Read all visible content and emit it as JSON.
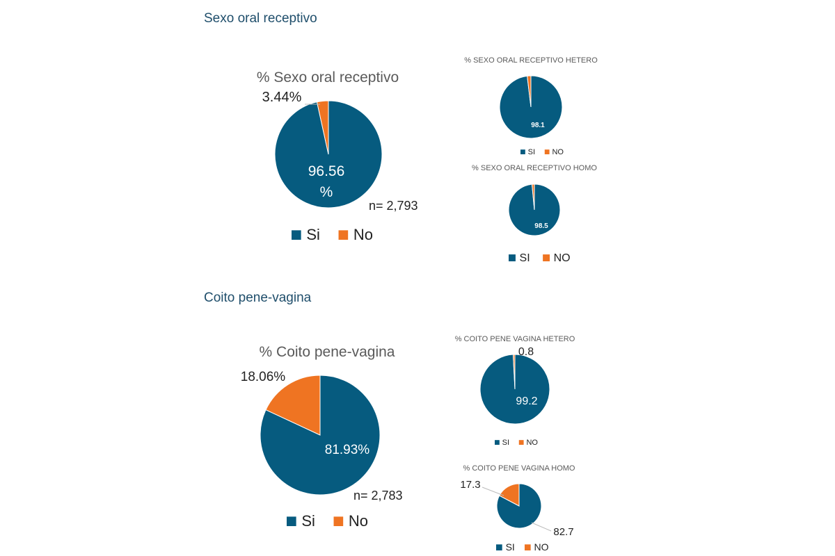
{
  "sections": [
    {
      "title": "Sexo oral receptivo"
    },
    {
      "title": "Coito pene-vagina"
    }
  ],
  "colors": {
    "si": "#065b7f",
    "no": "#ef7422",
    "title": "#5a5a5a",
    "text": "#222222"
  },
  "chart_data": [
    {
      "type": "pie",
      "title": "% Sexo oral receptivo",
      "categories": [
        "Si",
        "No"
      ],
      "values": [
        96.56,
        3.44
      ],
      "labels": [
        "96.56 %",
        "3.44%"
      ],
      "note": "n= 2,793",
      "legend": [
        "Si",
        "No"
      ]
    },
    {
      "type": "pie",
      "title": "% SEXO ORAL RECEPTIVO HETERO",
      "categories": [
        "SI",
        "NO"
      ],
      "values": [
        98.1,
        1.9
      ],
      "labels": [
        "98.1",
        ""
      ],
      "legend": [
        "SI",
        "NO"
      ]
    },
    {
      "type": "pie",
      "title": "% SEXO ORAL RECEPTIVO HOMO",
      "categories": [
        "SI",
        "NO"
      ],
      "values": [
        98.5,
        1.5
      ],
      "labels": [
        "98.5",
        ""
      ],
      "legend": [
        "SI",
        "NO"
      ]
    },
    {
      "type": "pie",
      "title": "% Coito pene-vagina",
      "categories": [
        "Si",
        "No"
      ],
      "values": [
        81.93,
        18.06
      ],
      "labels": [
        "81.93%",
        "18.06%"
      ],
      "note": "n= 2,783",
      "legend": [
        "Si",
        "No"
      ]
    },
    {
      "type": "pie",
      "title": "% COITO PENE VAGINA HETERO",
      "categories": [
        "SI",
        "NO"
      ],
      "values": [
        99.2,
        0.8
      ],
      "labels": [
        "99.2",
        "0.8"
      ],
      "legend": [
        "SI",
        "NO"
      ]
    },
    {
      "type": "pie",
      "title": "% COITO PENE VAGINA HOMO",
      "categories": [
        "SI",
        "NO"
      ],
      "values": [
        82.7,
        17.3
      ],
      "labels": [
        "82.7",
        "17.3"
      ],
      "legend": [
        "SI",
        "NO"
      ]
    }
  ]
}
